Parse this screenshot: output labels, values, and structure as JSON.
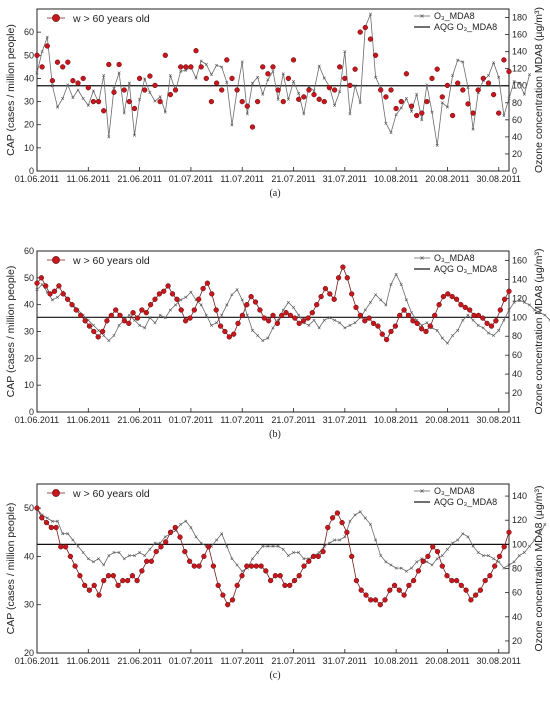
{
  "chart_data": [
    {
      "type": "line",
      "caption": "(a)",
      "ylabel": "CAP (cases / million people)",
      "y2label": "Ozone concentration MDA8 (µg/m³)",
      "ylim": [
        0,
        70
      ],
      "y2lim": [
        0,
        190
      ],
      "yticks": [
        0,
        10,
        20,
        30,
        40,
        50,
        60
      ],
      "y2ticks": [
        0,
        20,
        40,
        60,
        80,
        100,
        120,
        140,
        160,
        180
      ],
      "xlim_days": [
        0,
        92
      ],
      "xtick_labels": [
        "01.06.2011",
        "11.06.2011",
        "21.06.2011",
        "01.07.2011",
        "11.07.2011",
        "21.07.2011",
        "31.07.2011",
        "10.08.2011",
        "20.08.2011",
        "30.08.2011"
      ],
      "legend_left": [
        "w > 60 years old"
      ],
      "legend_right": [
        "O₃_MDA8",
        "AQG O₃_MDA8"
      ],
      "aqg_y2": 100,
      "series_cap": [
        50,
        45,
        54,
        39,
        47,
        45,
        47,
        39,
        38,
        40,
        36,
        30,
        30,
        26,
        46,
        34,
        46,
        35,
        30,
        27,
        40,
        35,
        41,
        37,
        30,
        50,
        33,
        35,
        45,
        45,
        45,
        52,
        45,
        40,
        30,
        38,
        35,
        48,
        40,
        35,
        30,
        28,
        19,
        30,
        45,
        42,
        45,
        35,
        30,
        40,
        48,
        31,
        32,
        35,
        33,
        31,
        30,
        36,
        35,
        45,
        40,
        37,
        44,
        60,
        62,
        57,
        50,
        35,
        32,
        35,
        27,
        30,
        42,
        28,
        24,
        25,
        30,
        40,
        44,
        32,
        37,
        24,
        38,
        35,
        29,
        25,
        35,
        40,
        38,
        33,
        25,
        48,
        43
      ],
      "series_o3": [
        115,
        140,
        157,
        100,
        75,
        85,
        101,
        86,
        95,
        85,
        77,
        94,
        80,
        112,
        40,
        97,
        115,
        68,
        103,
        42,
        84,
        108,
        92,
        82,
        87,
        69,
        112,
        94,
        117,
        118,
        122,
        109,
        129,
        125,
        113,
        124,
        122,
        104,
        54,
        95,
        128,
        67,
        103,
        110,
        90,
        107,
        117,
        84,
        114,
        84,
        105,
        91,
        67,
        99,
        94,
        123,
        109,
        99,
        77,
        93,
        140,
        67,
        100,
        80,
        169,
        184,
        110,
        97,
        56,
        45,
        66,
        74,
        85,
        70,
        90,
        60,
        101,
        69,
        30,
        80,
        75,
        112,
        130,
        128,
        98,
        49,
        92,
        106,
        112,
        127,
        110,
        65,
        85,
        105,
        103,
        90,
        113
      ]
    },
    {
      "type": "line",
      "caption": "(b)",
      "ylabel": "CAP (cases / million people)",
      "y2label": "Ozone concentration MDA8 (µg/m³)",
      "ylim": [
        0,
        60
      ],
      "y2lim": [
        0,
        170
      ],
      "yticks": [
        0,
        10,
        20,
        30,
        40,
        50,
        60
      ],
      "y2ticks": [
        20,
        40,
        60,
        80,
        100,
        120,
        140,
        160
      ],
      "xlim_days": [
        0,
        92
      ],
      "xtick_labels": [
        "01.06.2011",
        "11.06.2011",
        "21.06.2011",
        "01.07.2011",
        "11.07.2011",
        "21.07.2011",
        "31.07.2011",
        "10.08.2011",
        "20.08.2011",
        "30.08.2011"
      ],
      "legend_left": [
        "w > 60 years old"
      ],
      "legend_right": [
        "O₃_MDA8",
        "AQG O₃_MDA8"
      ],
      "aqg_y2": 100,
      "series_cap": [
        48,
        50,
        47,
        44,
        45,
        47,
        44,
        42,
        40,
        38,
        36,
        34,
        32,
        30,
        28,
        30,
        34,
        36,
        38,
        36,
        34,
        33,
        37,
        35,
        38,
        37,
        40,
        42,
        44,
        45,
        47,
        44,
        42,
        38,
        34,
        35,
        38,
        42,
        46,
        48,
        44,
        38,
        32,
        30,
        28,
        29,
        33,
        36,
        40,
        43,
        41,
        38,
        35,
        34,
        36,
        33,
        36,
        37,
        36,
        35,
        33,
        34,
        35,
        37,
        40,
        43,
        46,
        44,
        42,
        50,
        54,
        50,
        44,
        39,
        36,
        34,
        35,
        33,
        32,
        29,
        27,
        30,
        32,
        36,
        38,
        36,
        34,
        33,
        31,
        30,
        32,
        36,
        40,
        43,
        44,
        43,
        42,
        40,
        39,
        38,
        36,
        36,
        35,
        33,
        32,
        34,
        38,
        42,
        45
      ]
    },
    {
      "type": "line",
      "caption": "(c)",
      "ylabel": "CAP (cases / million people)",
      "y2label": "Ozone concentration MDA8 (µg/m³)",
      "ylim": [
        20,
        55
      ],
      "y2lim": [
        10,
        150
      ],
      "yticks": [
        20,
        30,
        40,
        50
      ],
      "y2ticks": [
        20,
        40,
        60,
        80,
        100,
        120,
        140
      ],
      "xlim_days": [
        0,
        92
      ],
      "xtick_labels": [
        "01.06.2011",
        "11.06.2011",
        "21.06.2011",
        "01.07.2011",
        "11.07.2011",
        "21.07.2011",
        "31.07.2011",
        "10.08.2011",
        "20.08.2011",
        "30.08.2011"
      ],
      "legend_left": [
        "w > 60 years old"
      ],
      "legend_right": [
        "O₃_MDA8",
        "AQG O₃_MDA8"
      ],
      "aqg_y2": 100,
      "series_cap": [
        50,
        48,
        47,
        46,
        46,
        42,
        42,
        40,
        38,
        36,
        34,
        33,
        34,
        32,
        35,
        36,
        36,
        34,
        35,
        35,
        36,
        35,
        37,
        39,
        39,
        41,
        42,
        43,
        45,
        46,
        44,
        41,
        39,
        38,
        38,
        40,
        42,
        38,
        34,
        32,
        30,
        31,
        34,
        36,
        38,
        38,
        38,
        38,
        37,
        35,
        36,
        36,
        34,
        34,
        35,
        36,
        38,
        39,
        40,
        40,
        41,
        46,
        48,
        49,
        47,
        45,
        40,
        35,
        33,
        32,
        31,
        31,
        30,
        31,
        33,
        34,
        33,
        32,
        34,
        35,
        37,
        39,
        40,
        42,
        41,
        38,
        36,
        35,
        35,
        34,
        33,
        31,
        32,
        33,
        35,
        36,
        38,
        40,
        42,
        45
      ]
    }
  ]
}
